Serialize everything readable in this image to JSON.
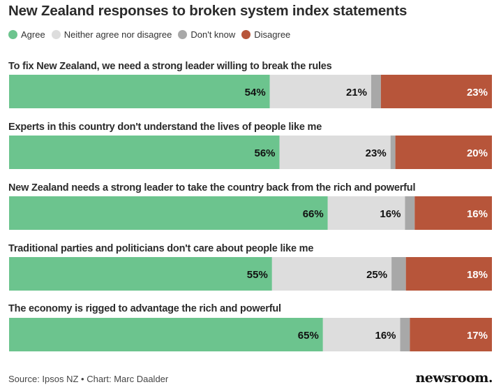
{
  "chart_data": {
    "type": "bar",
    "orientation": "horizontal-stacked-100",
    "title": "New Zealand responses to broken system index statements",
    "series_names": [
      "Agree",
      "Neither agree nor disagree",
      "Don't know",
      "Disagree"
    ],
    "colors": [
      "#6cc48e",
      "#dddddd",
      "#a8a8a8",
      "#b7553a"
    ],
    "label_colors": [
      "#111111",
      "#111111",
      "",
      "#ffffff"
    ],
    "categories": [
      "To fix New Zealand, we need a strong leader willing to break the rules",
      "Experts in this country don't understand the lives of people like me",
      "New Zealand needs a strong leader to take the country back from the rich and powerful",
      "Traditional parties and politicians don't care about people like me",
      "The economy is rigged to advantage the rich and powerful"
    ],
    "series": [
      {
        "name": "Agree",
        "values": [
          54,
          56,
          66,
          55,
          65
        ]
      },
      {
        "name": "Neither agree nor disagree",
        "values": [
          21,
          23,
          16,
          25,
          16
        ]
      },
      {
        "name": "Don't know",
        "values": [
          2,
          1,
          2,
          3,
          2
        ]
      },
      {
        "name": "Disagree",
        "values": [
          23,
          20,
          16,
          18,
          17
        ]
      }
    ],
    "labeled_series": [
      "Agree",
      "Neither agree nor disagree",
      "Disagree"
    ],
    "value_suffix": "%",
    "xlim": [
      0,
      100
    ],
    "legend_position": "top-left",
    "grid": false
  },
  "legend": [
    "Agree",
    "Neither agree nor disagree",
    "Don't know",
    "Disagree"
  ],
  "footer": {
    "source": "Source: Ipsos NZ • Chart: Marc Daalder",
    "logo": "newsroom."
  }
}
